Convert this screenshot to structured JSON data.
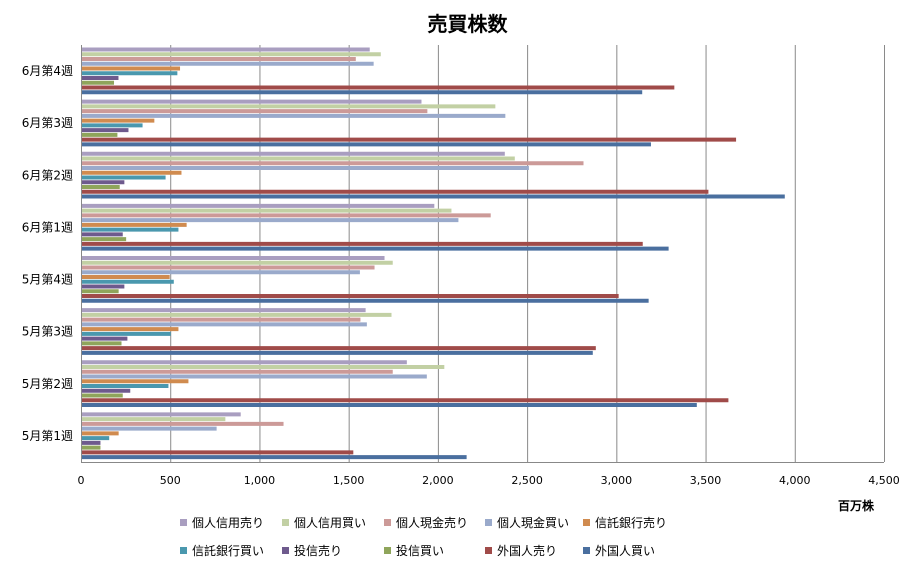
{
  "chart_data": {
    "type": "bar",
    "orientation": "horizontal",
    "title": "売買株数",
    "xlabel": "百万株",
    "ylabel": "",
    "xlim": [
      0,
      4500
    ],
    "xticks": [
      0,
      500,
      1000,
      1500,
      2000,
      2500,
      3000,
      3500,
      4000,
      4500
    ],
    "xtick_labels": [
      "0",
      "500",
      "1,000",
      "1,500",
      "2,000",
      "2,500",
      "3,000",
      "3,500",
      "4,000",
      "4,500"
    ],
    "grid": true,
    "legend_position": "bottom",
    "categories": [
      "5月第1週",
      "5月第2週",
      "5月第3週",
      "5月第4週",
      "6月第1週",
      "6月第2週",
      "6月第3週",
      "6月第4週"
    ],
    "series": [
      {
        "name": "個人信用売り",
        "color": "#A99EC0",
        "values": [
          895,
          1826,
          1595,
          1701,
          1980,
          2375,
          1908,
          1618
        ]
      },
      {
        "name": "個人信用買い",
        "color": "#C2D0A4",
        "values": [
          809,
          2036,
          1740,
          1747,
          2076,
          2431,
          2322,
          1680
        ]
      },
      {
        "name": "個人現金売り",
        "color": "#CC9A98",
        "values": [
          1135,
          1747,
          1566,
          1645,
          2296,
          2816,
          1941,
          1540
        ]
      },
      {
        "name": "個人現金買い",
        "color": "#9AAACB",
        "values": [
          760,
          1938,
          1602,
          1563,
          2115,
          2510,
          2378,
          1640
        ]
      },
      {
        "name": "信託銀行売り",
        "color": "#D08B4F",
        "values": [
          211,
          602,
          546,
          497,
          592,
          563,
          411,
          555
        ]
      },
      {
        "name": "信託銀行買い",
        "color": "#4A98AE",
        "values": [
          158,
          490,
          503,
          520,
          546,
          474,
          345,
          540
        ]
      },
      {
        "name": "投信売り",
        "color": "#6E5A8D",
        "values": [
          109,
          276,
          260,
          243,
          234,
          243,
          266,
          210
        ]
      },
      {
        "name": "投信買い",
        "color": "#8FA55B",
        "values": [
          109,
          234,
          227,
          211,
          253,
          217,
          204,
          185
        ]
      },
      {
        "name": "外国人売り",
        "color": "#A04B49",
        "values": [
          1526,
          3628,
          2885,
          3013,
          3148,
          3516,
          3671,
          3325
        ]
      },
      {
        "name": "外国人買い",
        "color": "#4A6F9F",
        "values": [
          2161,
          3451,
          2868,
          3181,
          3293,
          3944,
          3194,
          3145
        ]
      }
    ]
  }
}
